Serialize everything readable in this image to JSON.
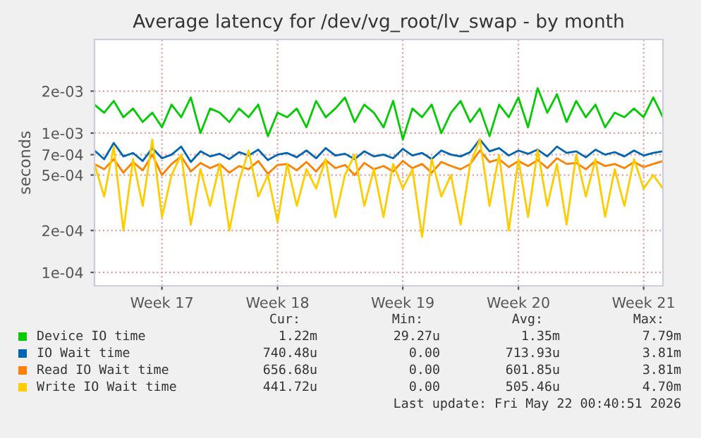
{
  "chart_data": {
    "type": "line",
    "title": "Average latency for /dev/vg_root/lv_swap - by month",
    "ylabel": "seconds",
    "categories": [
      null,
      null,
      null,
      null,
      null,
      null,
      null,
      "Week 17",
      null,
      null,
      null,
      null,
      null,
      null,
      null,
      null,
      null,
      null,
      null,
      "Week 18",
      null,
      null,
      null,
      null,
      null,
      null,
      null,
      null,
      null,
      null,
      null,
      null,
      "Week 19",
      null,
      null,
      null,
      null,
      null,
      null,
      null,
      null,
      null,
      null,
      null,
      "Week 20",
      null,
      null,
      null,
      null,
      null,
      null,
      null,
      null,
      null,
      null,
      null,
      null,
      "Week 21",
      null,
      null
    ],
    "series": [
      {
        "name": "Device IO time",
        "color": "#00cc00",
        "values": [
          0.0016,
          0.0014,
          0.0017,
          0.0013,
          0.0015,
          0.0012,
          0.0014,
          0.0011,
          0.0016,
          0.0013,
          0.0018,
          0.001,
          0.0015,
          0.0014,
          0.0012,
          0.0015,
          0.0013,
          0.0016,
          0.00095,
          0.0014,
          0.0013,
          0.0015,
          0.0011,
          0.0017,
          0.0013,
          0.0015,
          0.0018,
          0.0012,
          0.0016,
          0.0014,
          0.0011,
          0.0017,
          0.0009,
          0.0015,
          0.0013,
          0.0016,
          0.001,
          0.0014,
          0.0017,
          0.0012,
          0.0015,
          0.00095,
          0.0016,
          0.0013,
          0.0018,
          0.0011,
          0.0021,
          0.0014,
          0.0019,
          0.0012,
          0.0017,
          0.0013,
          0.0016,
          0.0011,
          0.0014,
          0.0013,
          0.0015,
          0.0013,
          0.0018,
          0.0013
        ]
      },
      {
        "name": "IO Wait time",
        "color": "#0066b3",
        "values": [
          0.00075,
          0.00065,
          0.00085,
          0.00068,
          0.00072,
          0.00063,
          0.00078,
          0.00066,
          0.0007,
          0.0008,
          0.00062,
          0.00074,
          0.00068,
          0.00071,
          0.00065,
          0.00073,
          0.00069,
          0.00076,
          0.00064,
          0.0007,
          0.00072,
          0.00067,
          0.00075,
          0.00066,
          0.00078,
          0.00069,
          0.00071,
          0.00065,
          0.00074,
          0.00068,
          0.0007,
          0.00066,
          0.00077,
          0.00069,
          0.00072,
          0.00065,
          0.00075,
          0.0007,
          0.00068,
          0.00073,
          0.0009,
          0.00074,
          0.00078,
          0.00069,
          0.00075,
          0.00071,
          0.00076,
          0.00068,
          0.0008,
          0.00072,
          0.00074,
          0.00067,
          0.00076,
          0.0007,
          0.00073,
          0.00068,
          0.00075,
          0.00069,
          0.00072,
          0.00074
        ]
      },
      {
        "name": "Read IO Wait time",
        "color": "#ff8000",
        "values": [
          0.0006,
          0.00055,
          0.00065,
          0.00052,
          0.00062,
          0.00054,
          0.0007,
          0.0005,
          0.0006,
          0.00068,
          0.00053,
          0.00061,
          0.00056,
          0.0006,
          0.00052,
          0.00058,
          0.00055,
          0.00063,
          0.00051,
          0.00059,
          0.0006,
          0.00054,
          0.00062,
          0.00053,
          0.00064,
          0.00056,
          0.00059,
          0.0005,
          0.00061,
          0.00055,
          0.00058,
          0.00053,
          0.00063,
          0.00056,
          0.0006,
          0.00052,
          0.00062,
          0.00058,
          0.00055,
          0.0006,
          0.00075,
          0.00062,
          0.00065,
          0.00057,
          0.00063,
          0.00058,
          0.00064,
          0.00056,
          0.00066,
          0.0006,
          0.00061,
          0.00055,
          0.00063,
          0.00058,
          0.0006,
          0.00056,
          0.00062,
          0.00057,
          0.0006,
          0.00063
        ]
      },
      {
        "name": "Write IO Wait time",
        "color": "#ffcc00",
        "values": [
          0.0006,
          0.00035,
          0.0008,
          0.0002,
          0.00065,
          0.0003,
          0.0009,
          0.00025,
          0.0005,
          0.0007,
          0.00022,
          0.00055,
          0.0003,
          0.0006,
          0.0002,
          0.00045,
          0.00075,
          0.00035,
          0.0005,
          0.00023,
          0.0006,
          0.0003,
          0.00055,
          0.0004,
          0.00065,
          0.00025,
          0.0005,
          0.0007,
          0.0003,
          0.00055,
          0.00025,
          0.0006,
          0.0004,
          0.00055,
          0.00018,
          0.00065,
          0.00035,
          0.0005,
          0.00022,
          0.0006,
          0.0009,
          0.0003,
          0.0007,
          0.0002,
          0.00065,
          0.00025,
          0.00075,
          0.0003,
          0.0006,
          0.00022,
          0.0007,
          0.00035,
          0.00065,
          0.00025,
          0.00055,
          0.0003,
          0.00065,
          0.0004,
          0.0005,
          0.0004
        ]
      }
    ],
    "log": "y",
    "ylim": [
      8e-05,
      0.0047
    ],
    "yticks": [
      {
        "value": 0.0001,
        "label": "1e-04"
      },
      {
        "value": 0.0002,
        "label": "2e-04"
      },
      {
        "value": 0.0005,
        "label": "5e-04"
      },
      {
        "value": 0.0007,
        "label": "7e-04"
      },
      {
        "value": 0.001,
        "label": "1e-03"
      },
      {
        "value": 0.002,
        "label": "2e-03"
      }
    ],
    "grid": true,
    "legend": "bottom",
    "annotations": [
      "Cur:",
      "Min:",
      "Avg:",
      "Max:",
      "1.22m",
      "29.27u",
      "1.35m",
      "7.79m",
      "740.48u",
      "0.00",
      "713.93u",
      "3.81m",
      "656.68u",
      "0.00",
      "601.85u",
      "3.81m",
      "441.72u",
      "0.00",
      "505.46u",
      "4.70m",
      "Last update: Fri May 22 00:40:51 2026"
    ]
  }
}
